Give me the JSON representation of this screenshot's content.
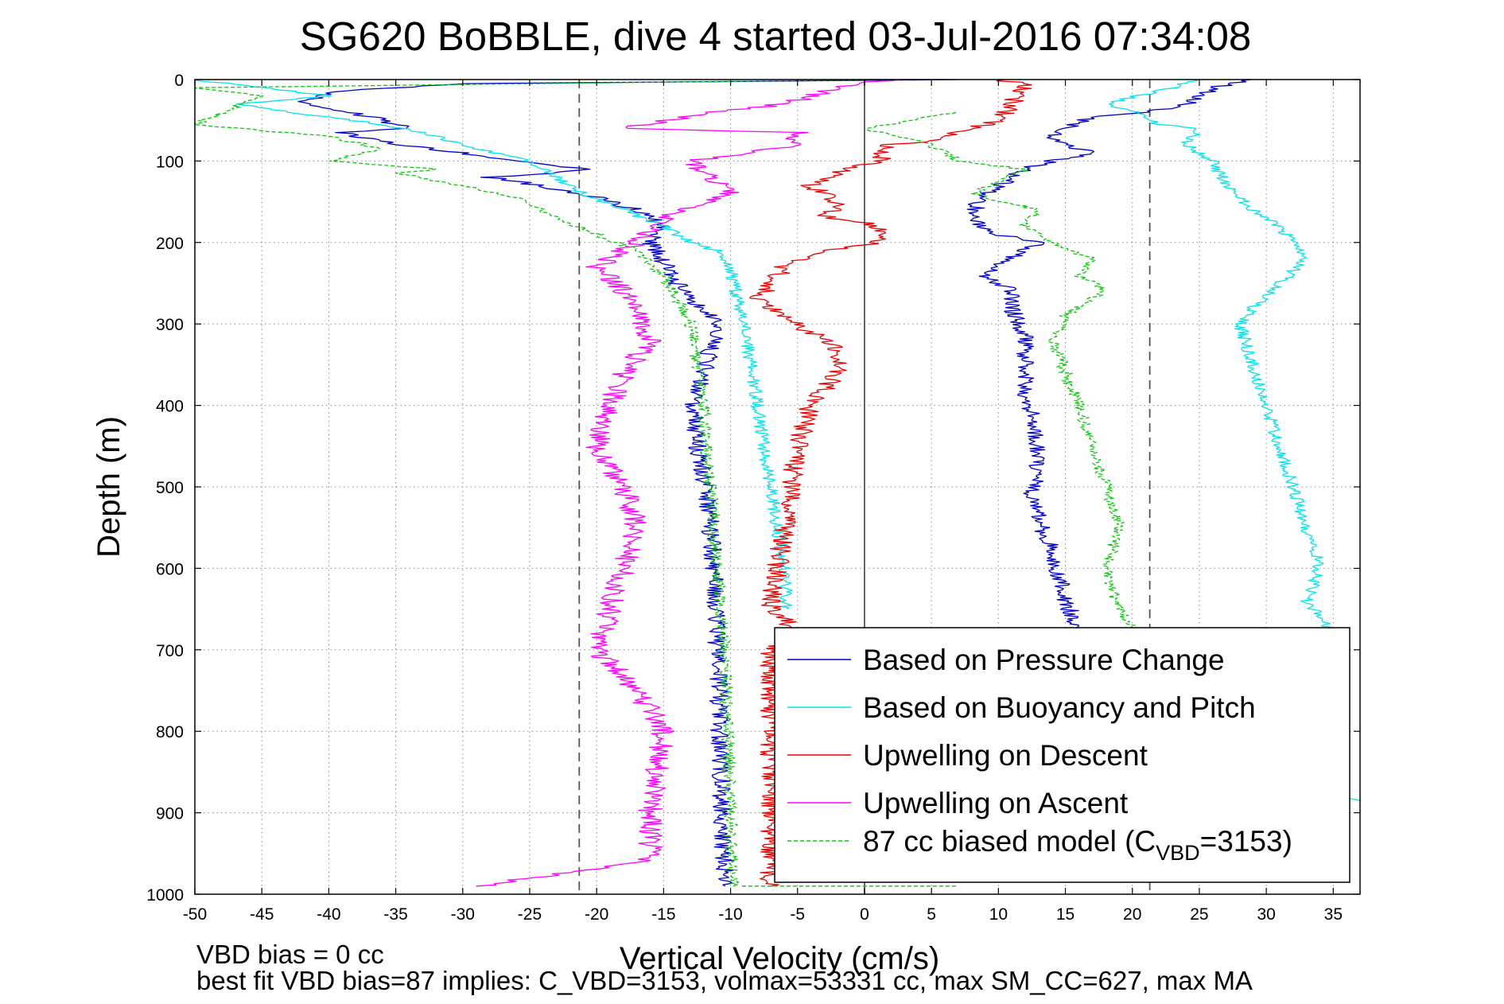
{
  "chart_data": {
    "type": "line",
    "title": "SG620 BoBBLE, dive 4 started 03-Jul-2016 07:34:08",
    "xlabel": "Vertical Velocity (cm/s)",
    "ylabel": "Depth (m)",
    "xlim": [
      -50,
      37
    ],
    "ylim": [
      0,
      1000
    ],
    "y_reversed": true,
    "grid": true,
    "legend_position": "bottom-right",
    "xticks": [
      "-50",
      "-45",
      "-40",
      "-35",
      "-30",
      "-25",
      "-20",
      "-15",
      "-10",
      "-5",
      "0",
      "5",
      "10",
      "15",
      "20",
      "25",
      "30",
      "35"
    ],
    "yticks": [
      "0",
      "100",
      "200",
      "300",
      "400",
      "500",
      "600",
      "700",
      "800",
      "900",
      "1000"
    ],
    "reference_lines": [
      {
        "x": -21.3,
        "style": "dashed",
        "color": "#555555"
      },
      {
        "x": 0,
        "style": "solid",
        "color": "#555555"
      },
      {
        "x": 21.3,
        "style": "dashed",
        "color": "#555555"
      }
    ],
    "series": [
      {
        "name": "Based on Pressure Change",
        "color": "#0000cc",
        "style": "solid",
        "noise": 0.7,
        "segments": [
          {
            "x": [
              7,
              -30,
              -40,
              -42,
              -37,
              -34,
              -39,
              -35,
              -30,
              -26,
              -21,
              -23,
              -28,
              -26,
              -21,
              -17,
              -15,
              -16,
              -14,
              -11,
              -11.5,
              -12,
              -12.8,
              -12.5,
              -11.8,
              -11.5,
              -11.2,
              -11,
              -10.8,
              -10.6,
              -10.4
            ],
            "y": [
              0,
              5,
              15,
              30,
              45,
              60,
              65,
              80,
              90,
              100,
              110,
              115,
              120,
              125,
              140,
              160,
              180,
              200,
              250,
              300,
              330,
              360,
              400,
              450,
              500,
              550,
              600,
              700,
              800,
              900,
              990
            ]
          },
          {
            "x": [
              29,
              26,
              24,
              21,
              17,
              15,
              14,
              15,
              17,
              14,
              12,
              10,
              8.5,
              8,
              10,
              13,
              9,
              11,
              11,
              12,
              12,
              13,
              12.5,
              14,
              15,
              16
            ],
            "y": [
              0,
              10,
              30,
              40,
              45,
              60,
              70,
              80,
              90,
              100,
              110,
              130,
              150,
              170,
              190,
              200,
              240,
              260,
              280,
              320,
              380,
              450,
              520,
              580,
              640,
              680
            ]
          }
        ]
      },
      {
        "name": "Based on Buoyancy and Pitch",
        "color": "#00e5ee",
        "style": "solid",
        "noise": 0.5,
        "segments": [
          {
            "x": [
              -50,
              -45,
              -40,
              -47,
              -43,
              -36,
              -33,
              -31,
              -29,
              -25,
              -23,
              -21,
              -18,
              -15,
              -13,
              -11,
              -10,
              -9.5,
              -9,
              -8.5,
              -8,
              -7.5,
              -7,
              -6.5,
              -6,
              -5.8
            ],
            "y": [
              0,
              10,
              20,
              30,
              40,
              55,
              65,
              75,
              85,
              100,
              120,
              140,
              160,
              180,
              200,
              210,
              230,
              270,
              300,
              350,
              400,
              450,
              500,
              550,
              600,
              650
            ]
          },
          {
            "x": [
              25,
              23,
              18,
              20,
              22,
              25,
              24,
              26,
              27,
              29,
              31,
              32,
              33,
              31,
              29,
              28,
              29,
              30,
              30.5,
              31,
              32,
              33,
              34,
              33,
              34,
              35
            ],
            "y": [
              0,
              10,
              30,
              40,
              55,
              60,
              80,
              100,
              130,
              160,
              180,
              200,
              220,
              250,
              280,
              300,
              350,
              400,
              430,
              450,
              500,
              550,
              600,
              640,
              660,
              680
            ]
          },
          {
            "x": [
              35,
              37
            ],
            "y": [
              880,
              885
            ]
          }
        ]
      },
      {
        "name": "Upwelling on Descent",
        "color": "#ee0000",
        "style": "solid",
        "noise": 0.8,
        "segments": [
          {
            "x": [
              10,
              12,
              11.5,
              10.5,
              10,
              8,
              5,
              2,
              1,
              -2,
              -4,
              -2,
              -3,
              0,
              2,
              1,
              -3,
              -6,
              -7,
              -8,
              -6,
              -4,
              -2,
              -2,
              -4,
              -5,
              -5.5,
              -6,
              -6.5,
              -7,
              -6,
              -5.5,
              -5,
              -7,
              -7,
              -7
            ],
            "y": [
              0,
              5,
              20,
              40,
              50,
              60,
              75,
              80,
              100,
              115,
              130,
              150,
              170,
              175,
              190,
              200,
              210,
              230,
              250,
              270,
              290,
              310,
              330,
              360,
              400,
              450,
              500,
              550,
              600,
              650,
              660,
              670,
              680,
              700,
              800,
              990
            ]
          }
        ]
      },
      {
        "name": "Upwelling on Ascent",
        "color": "#ff00ff",
        "style": "solid",
        "noise": 0.9,
        "segments": [
          {
            "x": [
              2,
              -2,
              -4,
              -6,
              -11,
              -18,
              -5,
              -5,
              -13,
              -10,
              -14,
              -16,
              -17,
              -20,
              -18,
              -17,
              -16,
              -18,
              -19,
              -20,
              -18,
              -17,
              -18,
              -19,
              -20,
              -17,
              -15,
              -15.5,
              -16,
              -16,
              -29
            ],
            "y": [
              0,
              10,
              20,
              30,
              40,
              60,
              65,
              80,
              100,
              140,
              160,
              180,
              200,
              230,
              260,
              280,
              320,
              360,
              400,
              450,
              500,
              550,
              600,
              650,
              700,
              750,
              800,
              850,
              900,
              960,
              990
            ]
          }
        ]
      },
      {
        "name": "87 cc biased model (C",
        "name_subscript": "VBD",
        "name_suffix": "=3153)",
        "color": "#00cc00",
        "style": "dashed",
        "noise": 0.5,
        "segments": [
          {
            "x": [
              1,
              -50,
              -45,
              -50,
              -40,
              -36,
              -40,
              -32,
              -35,
              -30,
              -25,
              -23,
              -20,
              -17,
              -15,
              -14,
              -13,
              -12.5,
              -12,
              -11.8,
              -11.5,
              -11,
              -10.5,
              -10.2,
              -10,
              -9.8
            ],
            "y": [
              0,
              10,
              20,
              55,
              70,
              85,
              100,
              110,
              115,
              130,
              150,
              170,
              190,
              210,
              240,
              270,
              300,
              350,
              400,
              450,
              500,
              600,
              700,
              800,
              900,
              990
            ]
          },
          {
            "x": [
              7,
              0,
              5,
              7,
              12,
              8,
              13,
              12,
              14,
              17,
              16,
              18,
              15,
              14,
              16,
              17,
              18,
              19,
              18,
              19,
              20,
              21,
              23
            ],
            "y": [
              40,
              60,
              80,
              100,
              110,
              140,
              160,
              180,
              200,
              220,
              240,
              260,
              290,
              320,
              400,
              450,
              500,
              550,
              600,
              650,
              670,
              700,
              780
            ]
          },
          {
            "x": [
              -9.5,
              7
            ],
            "y": [
              990,
              990
            ]
          }
        ]
      }
    ],
    "annotations": [
      "VBD bias = 0 cc",
      "best fit VBD bias=87 implies: C_VBD=3153, volmax=53331 cc, max SM_CC=627, max MA"
    ]
  }
}
